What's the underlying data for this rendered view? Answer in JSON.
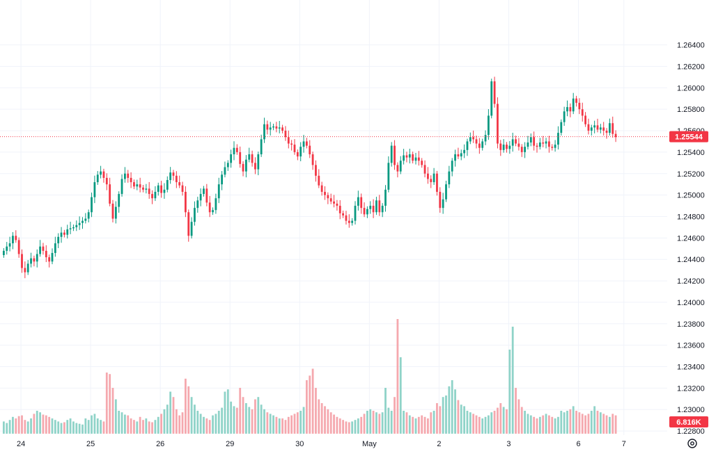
{
  "chart_data": {
    "type": "candlestick",
    "title": "",
    "price_axis": {
      "ticks": [
        "1.26400",
        "1.26200",
        "1.26000",
        "1.25800",
        "1.25600",
        "1.25400",
        "1.25200",
        "1.25000",
        "1.24800",
        "1.24600",
        "1.24400",
        "1.24200",
        "1.24000",
        "1.23800",
        "1.23600",
        "1.23400",
        "1.23200",
        "1.23000",
        "1.22800"
      ],
      "range": [
        1.2271,
        1.2665
      ]
    },
    "time_axis": {
      "ticks": [
        "24",
        "25",
        "26",
        "29",
        "30",
        "May",
        "2",
        "3",
        "6",
        "7"
      ]
    },
    "last_price": {
      "label": "1.25544",
      "value": 1.25544,
      "color": "#f23645"
    },
    "volume_label": {
      "label": "6.816K",
      "color": "#f23645"
    },
    "colors": {
      "up": "#089981",
      "down": "#f23645",
      "up_volume": "#8fd3c8",
      "down_volume": "#f5a8ae",
      "grid": "#f0f3fa"
    },
    "days": [
      {
        "label": "24",
        "values": [
          1.2448,
          1.2452,
          1.2455,
          1.2462,
          1.2458,
          1.2445,
          1.2432,
          1.2428,
          1.2436,
          1.2441,
          1.2438,
          1.2445,
          1.2452,
          1.2448,
          1.2442,
          1.2438,
          1.2446,
          1.2455,
          1.2461,
          1.2465,
          1.2463,
          1.2468,
          1.2469
        ]
      },
      {
        "label": "25",
        "values": [
          1.247,
          1.2472,
          1.2474,
          1.2476,
          1.2478,
          1.2484,
          1.2498,
          1.2512,
          1.2519,
          1.2522,
          1.2516,
          1.251,
          1.2492,
          1.2478,
          1.2489,
          1.2501,
          1.2515,
          1.252,
          1.2516,
          1.2512,
          1.2508,
          1.251,
          1.2507
        ]
      },
      {
        "label": "26",
        "values": [
          1.2505,
          1.2506,
          1.2501,
          1.2497,
          1.2503,
          1.2509,
          1.2502,
          1.2505,
          1.2514,
          1.2521,
          1.2518,
          1.2512,
          1.2509,
          1.2503,
          1.2484,
          1.2462,
          1.2475,
          1.2488,
          1.2495,
          1.2501,
          1.2506,
          1.2493,
          1.2484
        ]
      },
      {
        "label": "29",
        "values": [
          1.2486,
          1.2497,
          1.251,
          1.2519,
          1.2526,
          1.253,
          1.2538,
          1.2544,
          1.254,
          1.2529,
          1.2522,
          1.2533,
          1.2538,
          1.253,
          1.2524,
          1.2538,
          1.2552,
          1.2566,
          1.2561,
          1.2563,
          1.2564,
          1.2562,
          1.2563
        ]
      },
      {
        "label": "30",
        "values": [
          1.256,
          1.2554,
          1.2548,
          1.2547,
          1.254,
          1.2536,
          1.2545,
          1.255,
          1.2546,
          1.2538,
          1.2528,
          1.2518,
          1.2509,
          1.2503,
          1.25,
          1.2497,
          1.2494,
          1.2492,
          1.249,
          1.2483,
          1.2481,
          1.2476,
          1.2474
        ]
      },
      {
        "label": "May",
        "values": [
          1.2476,
          1.249,
          1.2498,
          1.2488,
          1.2482,
          1.2487,
          1.249,
          1.2484,
          1.2495,
          1.2484,
          1.249,
          1.2505,
          1.253,
          1.2546,
          1.2528,
          1.2522,
          1.2532,
          1.2537,
          1.2535,
          1.2538,
          1.2532,
          1.2535,
          1.2532
        ]
      },
      {
        "label": "2",
        "values": [
          1.2528,
          1.252,
          1.2515,
          1.2512,
          1.252,
          1.2503,
          1.2488,
          1.2496,
          1.251,
          1.2522,
          1.2532,
          1.2538,
          1.2536,
          1.2539,
          1.2542,
          1.255,
          1.2554,
          1.2552,
          1.2548,
          1.2544,
          1.255,
          1.2556,
          1.2574
        ]
      },
      {
        "label": "3",
        "values": [
          1.2606,
          1.2585,
          1.2548,
          1.2542,
          1.2547,
          1.2543,
          1.2546,
          1.2552,
          1.2548,
          1.2545,
          1.254,
          1.2545,
          1.2549,
          1.2554,
          1.2546,
          1.2545,
          1.2549,
          1.2548,
          1.255,
          1.2545,
          1.2544,
          1.2547,
          1.2558
        ]
      },
      {
        "label": "6",
        "values": [
          1.2568,
          1.2578,
          1.2582,
          1.2578,
          1.259,
          1.2586,
          1.258,
          1.2574,
          1.2566,
          1.256,
          1.2563,
          1.2565,
          1.2561,
          1.2563,
          1.256,
          1.2558,
          1.2567,
          1.2557,
          1.2554
        ]
      }
    ],
    "volume": {
      "24": [
        16,
        14,
        18,
        22,
        20,
        23,
        24,
        18,
        16,
        20,
        26,
        30,
        28,
        25,
        24,
        22,
        20,
        18,
        16,
        14,
        15,
        18,
        20
      ],
      "25": [
        16,
        14,
        13,
        12,
        20,
        18,
        24,
        26,
        20,
        18,
        16,
        80,
        78,
        60,
        45,
        30,
        28,
        25,
        24,
        20,
        18,
        16,
        22
      ],
      "26": [
        18,
        20,
        16,
        15,
        18,
        22,
        26,
        32,
        38,
        55,
        48,
        32,
        24,
        28,
        72,
        62,
        48,
        38,
        30,
        26,
        22,
        20,
        18
      ],
      "29": [
        24,
        26,
        30,
        34,
        55,
        58,
        42,
        36,
        34,
        60,
        48,
        40,
        35,
        32,
        45,
        48,
        38,
        32,
        28,
        26,
        24,
        22,
        20
      ],
      "30": [
        20,
        18,
        22,
        24,
        26,
        28,
        30,
        35,
        70,
        76,
        85,
        60,
        45,
        40,
        36,
        32,
        28,
        25,
        22,
        20,
        18,
        16,
        15
      ],
      "May": [
        16,
        18,
        20,
        22,
        26,
        30,
        32,
        30,
        28,
        26,
        28,
        60,
        34,
        30,
        48,
        150,
        100,
        30,
        28,
        24,
        22,
        20,
        22
      ],
      "2": [
        24,
        22,
        20,
        28,
        30,
        40,
        36,
        48,
        50,
        62,
        70,
        58,
        44,
        38,
        36,
        30,
        28,
        26,
        24,
        22,
        20,
        22,
        24
      ],
      "3": [
        28,
        30,
        34,
        40,
        35,
        32,
        110,
        140,
        60,
        45,
        35,
        30,
        26,
        24,
        22,
        20,
        22,
        24,
        26,
        24,
        22,
        20,
        22
      ],
      "6": [
        30,
        28,
        30,
        32,
        36,
        30,
        28,
        26,
        24,
        26,
        30,
        36,
        30,
        28,
        26,
        24,
        22,
        26,
        24
      ]
    }
  },
  "settings_icon": "gear-icon"
}
